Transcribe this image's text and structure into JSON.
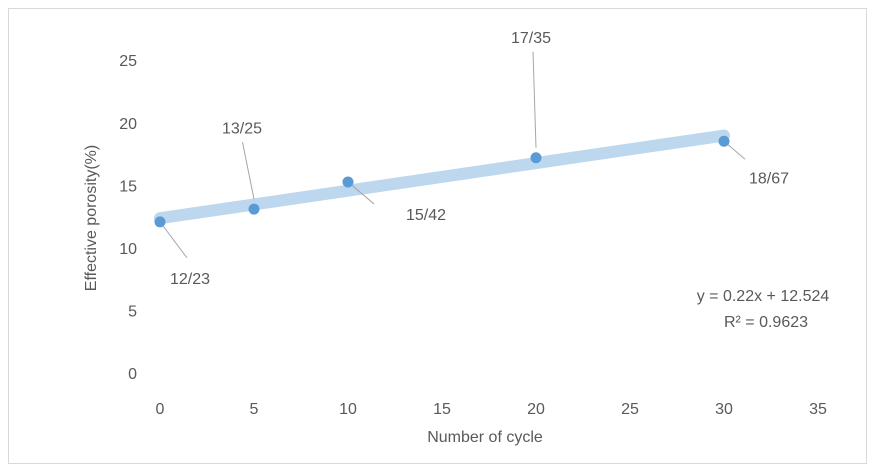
{
  "chart_data": {
    "type": "scatter",
    "x_label": "Number of cycle",
    "y_label": "Effective porosity(%)",
    "x": [
      0,
      5,
      10,
      20,
      30
    ],
    "series": [
      {
        "name": "Effective porosity",
        "color": "#5b9bd5",
        "values": [
          12.23,
          13.25,
          15.42,
          17.35,
          18.67
        ],
        "value_labels": [
          "12/23",
          "13/25",
          "15/42",
          "17/35",
          "18/67"
        ]
      }
    ],
    "trendline": {
      "slope": 0.22,
      "intercept": 12.524,
      "color": "#bdd7ee",
      "equation": "y = 0.22x + 12.524",
      "r_squared": "R² = 0.9623"
    },
    "xlim": [
      0,
      35
    ],
    "xticks": [
      0,
      5,
      10,
      15,
      20,
      25,
      30,
      35
    ],
    "ylim": [
      0,
      25
    ],
    "yticks": [
      0,
      5,
      10,
      15,
      20,
      25
    ],
    "grid": false
  }
}
